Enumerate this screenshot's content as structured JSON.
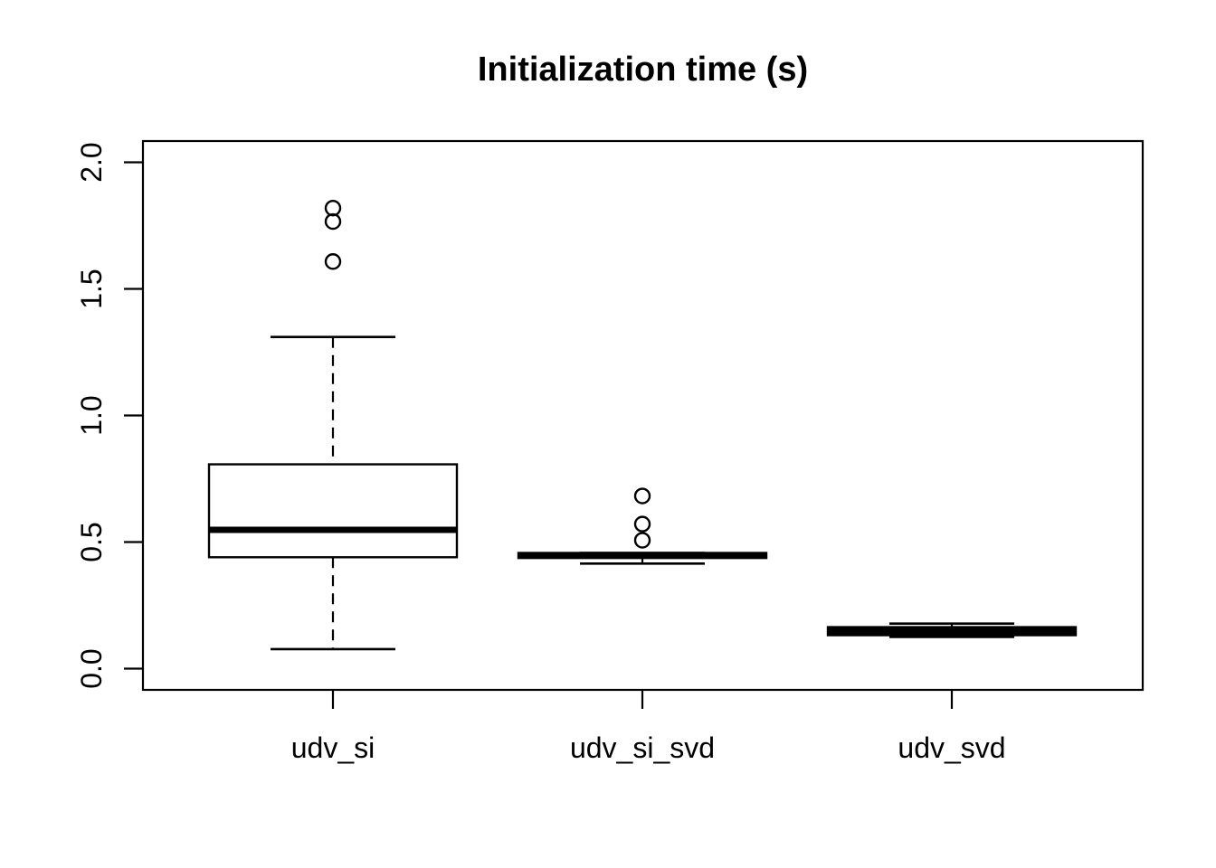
{
  "title": "Initialization time (s)",
  "chart_data": {
    "type": "boxplot",
    "title": "Initialization time (s)",
    "categories": [
      "udv_si",
      "udv_si_svd",
      "udv_svd"
    ],
    "xlabel": "",
    "ylabel": "",
    "y_ticks": [
      0.0,
      0.5,
      1.0,
      1.5,
      2.0
    ],
    "y_tick_labels": [
      "0.0",
      "0.5",
      "1.0",
      "1.5",
      "2.0"
    ],
    "ylim": [
      -0.09,
      2.08
    ],
    "grid": false,
    "legend": "none",
    "series": [
      {
        "name": "udv_si",
        "whisker_low": 0.077,
        "q1": 0.44,
        "median": 0.548,
        "q3": 0.807,
        "whisker_high": 1.31,
        "outliers": [
          1.608,
          1.766,
          1.819
        ]
      },
      {
        "name": "udv_si_svd",
        "whisker_low": 0.415,
        "q1": 0.437,
        "median": 0.447,
        "q3": 0.457,
        "whisker_high": 0.457,
        "outliers": [
          0.507,
          0.571,
          0.682
        ]
      },
      {
        "name": "udv_svd",
        "whisker_low": 0.125,
        "q1": 0.132,
        "median": 0.148,
        "q3": 0.164,
        "whisker_high": 0.178,
        "outliers": []
      }
    ],
    "colors": {
      "stroke": "#000000",
      "box_fill": "#ffffff",
      "background": "#ffffff"
    }
  }
}
